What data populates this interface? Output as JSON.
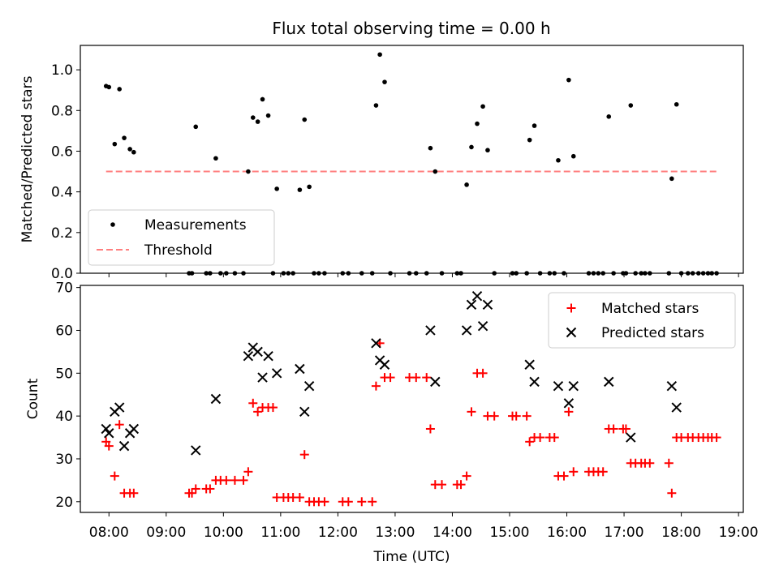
{
  "title": "Flux total observing time = 0.00 h",
  "colors": {
    "measurement": "#000000",
    "threshold": "#ff7f7f",
    "matched": "#ff0000",
    "predicted": "#000000"
  },
  "chart_data": [
    {
      "type": "scatter",
      "title": "Flux total observing time = 0.00 h",
      "ylabel": "Matched/Predicted stars",
      "xlabel": "",
      "ylim": [
        0.0,
        1.12
      ],
      "xlim": [
        "07:30",
        "19:05"
      ],
      "y_ticks": [
        "0.0",
        "0.2",
        "0.4",
        "0.6",
        "0.8",
        "1.0"
      ],
      "legend": {
        "placement": "lower-left",
        "entries": [
          "Measurements",
          "Threshold"
        ]
      },
      "threshold": {
        "name": "Threshold",
        "y": 0.5,
        "x_range": [
          "07:57",
          "18:37"
        ]
      },
      "series": [
        {
          "name": "Measurements",
          "points": [
            [
              "07:57",
              0.92
            ],
            [
              "08:00",
              0.915
            ],
            [
              "08:06",
              0.635
            ],
            [
              "08:11",
              0.905
            ],
            [
              "08:16",
              0.665
            ],
            [
              "08:22",
              0.61
            ],
            [
              "08:26",
              0.595
            ],
            [
              "09:24",
              0.0
            ],
            [
              "09:27",
              0.0
            ],
            [
              "09:31",
              0.72
            ],
            [
              "09:42",
              0.0
            ],
            [
              "09:46",
              0.0
            ],
            [
              "09:52",
              0.565
            ],
            [
              "09:57",
              0.0
            ],
            [
              "10:03",
              0.0
            ],
            [
              "10:12",
              0.0
            ],
            [
              "10:21",
              0.0
            ],
            [
              "10:26",
              0.5
            ],
            [
              "10:31",
              0.765
            ],
            [
              "10:36",
              0.745
            ],
            [
              "10:41",
              0.855
            ],
            [
              "10:47",
              0.775
            ],
            [
              "10:52",
              0.0
            ],
            [
              "10:56",
              0.415
            ],
            [
              "11:03",
              0.0
            ],
            [
              "11:08",
              0.0
            ],
            [
              "11:13",
              0.0
            ],
            [
              "11:20",
              0.41
            ],
            [
              "11:25",
              0.755
            ],
            [
              "11:30",
              0.425
            ],
            [
              "11:35",
              0.0
            ],
            [
              "11:40",
              0.0
            ],
            [
              "11:46",
              0.0
            ],
            [
              "12:05",
              0.0
            ],
            [
              "12:11",
              0.0
            ],
            [
              "12:25",
              0.0
            ],
            [
              "12:36",
              0.0
            ],
            [
              "12:40",
              0.825
            ],
            [
              "12:44",
              1.075
            ],
            [
              "12:49",
              0.94
            ],
            [
              "12:55",
              0.0
            ],
            [
              "13:15",
              0.0
            ],
            [
              "13:22",
              0.0
            ],
            [
              "13:33",
              0.0
            ],
            [
              "13:37",
              0.615
            ],
            [
              "13:42",
              0.5
            ],
            [
              "13:49",
              0.0
            ],
            [
              "14:05",
              0.0
            ],
            [
              "14:09",
              0.0
            ],
            [
              "14:15",
              0.435
            ],
            [
              "14:20",
              0.62
            ],
            [
              "14:26",
              0.735
            ],
            [
              "14:32",
              0.82
            ],
            [
              "14:37",
              0.605
            ],
            [
              "14:44",
              0.0
            ],
            [
              "15:03",
              0.0
            ],
            [
              "15:07",
              0.0
            ],
            [
              "15:18",
              0.0
            ],
            [
              "15:21",
              0.655
            ],
            [
              "15:26",
              0.725
            ],
            [
              "15:32",
              0.0
            ],
            [
              "15:42",
              0.0
            ],
            [
              "15:47",
              0.0
            ],
            [
              "15:51",
              0.555
            ],
            [
              "15:57",
              0.0
            ],
            [
              "16:02",
              0.95
            ],
            [
              "16:07",
              0.575
            ],
            [
              "16:23",
              0.0
            ],
            [
              "16:28",
              0.0
            ],
            [
              "16:33",
              0.0
            ],
            [
              "16:38",
              0.0
            ],
            [
              "16:44",
              0.77
            ],
            [
              "16:49",
              0.0
            ],
            [
              "16:59",
              0.0
            ],
            [
              "17:02",
              0.0
            ],
            [
              "17:07",
              0.825
            ],
            [
              "17:12",
              0.0
            ],
            [
              "17:18",
              0.0
            ],
            [
              "17:22",
              0.0
            ],
            [
              "17:27",
              0.0
            ],
            [
              "17:47",
              0.0
            ],
            [
              "17:50",
              0.465
            ],
            [
              "17:55",
              0.83
            ],
            [
              "18:00",
              0.0
            ],
            [
              "18:07",
              0.0
            ],
            [
              "18:12",
              0.0
            ],
            [
              "18:18",
              0.0
            ],
            [
              "18:23",
              0.0
            ],
            [
              "18:28",
              0.0
            ],
            [
              "18:32",
              0.0
            ],
            [
              "18:37",
              0.0
            ]
          ]
        }
      ]
    },
    {
      "type": "scatter",
      "title": "",
      "xlabel": "Time (UTC)",
      "ylabel": "Count",
      "ylim": [
        17.5,
        70.5
      ],
      "xlim": [
        "07:30",
        "19:05"
      ],
      "y_ticks": [
        "20",
        "30",
        "40",
        "50",
        "60",
        "70"
      ],
      "x_ticks": [
        "08:00",
        "09:00",
        "10:00",
        "11:00",
        "12:00",
        "13:00",
        "14:00",
        "15:00",
        "16:00",
        "17:00",
        "18:00",
        "19:00"
      ],
      "legend": {
        "placement": "top-right",
        "entries": [
          "Matched stars",
          "Predicted stars"
        ]
      },
      "series": [
        {
          "name": "Matched stars",
          "marker": "+",
          "points": [
            [
              "07:57",
              34
            ],
            [
              "08:00",
              33
            ],
            [
              "08:06",
              26
            ],
            [
              "08:11",
              38
            ],
            [
              "08:16",
              22
            ],
            [
              "08:22",
              22
            ],
            [
              "08:26",
              22
            ],
            [
              "09:24",
              22
            ],
            [
              "09:27",
              22
            ],
            [
              "09:31",
              23
            ],
            [
              "09:42",
              23
            ],
            [
              "09:46",
              23
            ],
            [
              "09:52",
              25
            ],
            [
              "09:57",
              25
            ],
            [
              "10:03",
              25
            ],
            [
              "10:12",
              25
            ],
            [
              "10:21",
              25
            ],
            [
              "10:26",
              27
            ],
            [
              "10:31",
              43
            ],
            [
              "10:36",
              41
            ],
            [
              "10:41",
              42
            ],
            [
              "10:47",
              42
            ],
            [
              "10:52",
              42
            ],
            [
              "10:56",
              21
            ],
            [
              "11:03",
              21
            ],
            [
              "11:08",
              21
            ],
            [
              "11:13",
              21
            ],
            [
              "11:20",
              21
            ],
            [
              "11:25",
              31
            ],
            [
              "11:30",
              20
            ],
            [
              "11:35",
              20
            ],
            [
              "11:40",
              20
            ],
            [
              "11:46",
              20
            ],
            [
              "12:05",
              20
            ],
            [
              "12:11",
              20
            ],
            [
              "12:25",
              20
            ],
            [
              "12:36",
              20
            ],
            [
              "12:40",
              47
            ],
            [
              "12:44",
              57
            ],
            [
              "12:49",
              49
            ],
            [
              "12:55",
              49
            ],
            [
              "13:15",
              49
            ],
            [
              "13:22",
              49
            ],
            [
              "13:33",
              49
            ],
            [
              "13:37",
              37
            ],
            [
              "13:42",
              24
            ],
            [
              "13:49",
              24
            ],
            [
              "14:05",
              24
            ],
            [
              "14:09",
              24
            ],
            [
              "14:15",
              26
            ],
            [
              "14:20",
              41
            ],
            [
              "14:26",
              50
            ],
            [
              "14:32",
              50
            ],
            [
              "14:37",
              40
            ],
            [
              "14:44",
              40
            ],
            [
              "15:03",
              40
            ],
            [
              "15:07",
              40
            ],
            [
              "15:18",
              40
            ],
            [
              "15:21",
              34
            ],
            [
              "15:26",
              35
            ],
            [
              "15:32",
              35
            ],
            [
              "15:42",
              35
            ],
            [
              "15:47",
              35
            ],
            [
              "15:51",
              26
            ],
            [
              "15:57",
              26
            ],
            [
              "16:02",
              41
            ],
            [
              "16:07",
              27
            ],
            [
              "16:23",
              27
            ],
            [
              "16:28",
              27
            ],
            [
              "16:33",
              27
            ],
            [
              "16:38",
              27
            ],
            [
              "16:44",
              37
            ],
            [
              "16:49",
              37
            ],
            [
              "16:59",
              37
            ],
            [
              "17:02",
              37
            ],
            [
              "17:07",
              29
            ],
            [
              "17:12",
              29
            ],
            [
              "17:18",
              29
            ],
            [
              "17:22",
              29
            ],
            [
              "17:27",
              29
            ],
            [
              "17:47",
              29
            ],
            [
              "17:50",
              22
            ],
            [
              "17:55",
              35
            ],
            [
              "18:00",
              35
            ],
            [
              "18:07",
              35
            ],
            [
              "18:12",
              35
            ],
            [
              "18:18",
              35
            ],
            [
              "18:23",
              35
            ],
            [
              "18:28",
              35
            ],
            [
              "18:32",
              35
            ],
            [
              "18:37",
              35
            ]
          ]
        },
        {
          "name": "Predicted stars",
          "marker": "x",
          "points": [
            [
              "07:57",
              37
            ],
            [
              "08:00",
              36
            ],
            [
              "08:06",
              41
            ],
            [
              "08:11",
              42
            ],
            [
              "08:16",
              33
            ],
            [
              "08:22",
              36
            ],
            [
              "08:26",
              37
            ],
            [
              "09:31",
              32
            ],
            [
              "09:52",
              44
            ],
            [
              "10:26",
              54
            ],
            [
              "10:31",
              56
            ],
            [
              "10:36",
              55
            ],
            [
              "10:41",
              49
            ],
            [
              "10:47",
              54
            ],
            [
              "10:56",
              50
            ],
            [
              "11:20",
              51
            ],
            [
              "11:25",
              41
            ],
            [
              "11:30",
              47
            ],
            [
              "12:40",
              57
            ],
            [
              "12:44",
              53
            ],
            [
              "12:49",
              52
            ],
            [
              "13:37",
              60
            ],
            [
              "13:42",
              48
            ],
            [
              "14:15",
              60
            ],
            [
              "14:20",
              66
            ],
            [
              "14:26",
              68
            ],
            [
              "14:32",
              61
            ],
            [
              "14:37",
              66
            ],
            [
              "15:21",
              52
            ],
            [
              "15:26",
              48
            ],
            [
              "15:51",
              47
            ],
            [
              "16:02",
              43
            ],
            [
              "16:07",
              47
            ],
            [
              "16:44",
              48
            ],
            [
              "17:07",
              35
            ],
            [
              "17:50",
              47
            ],
            [
              "17:55",
              42
            ]
          ]
        }
      ]
    }
  ]
}
